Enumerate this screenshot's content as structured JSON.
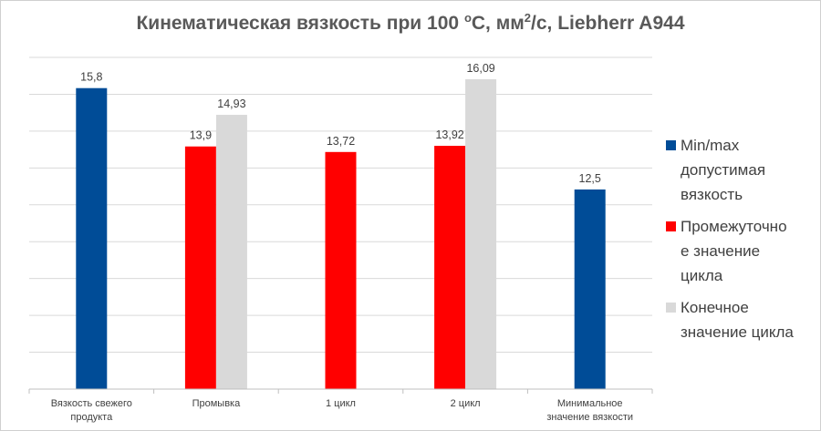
{
  "chart_data": {
    "type": "bar",
    "title": "Кинематическая вязкость при 100 °C, мм²/с, Liebherr A944",
    "title_parts": {
      "main": "Кинематическая вязкость при 100 ",
      "degree": "o",
      "unit_pre": "С, мм",
      "sq": "2",
      "tail": "/с, Liebherr A944"
    },
    "categories": [
      "Вязкость свежего продукта",
      "Промывка",
      "1 цикл",
      "2 цикл",
      "Минимальное значение вязкости"
    ],
    "category_lines": [
      [
        "Вязкость свежего",
        "продукта"
      ],
      [
        "Промывка"
      ],
      [
        "1 цикл"
      ],
      [
        "2 цикл"
      ],
      [
        "Минимальное",
        "значение вязкости"
      ]
    ],
    "series": [
      {
        "name": "Min/max допустимая вязкость",
        "color": "#004C97",
        "values": [
          15.8,
          null,
          null,
          null,
          12.5
        ]
      },
      {
        "name": "Промежуточное значение цикла",
        "color": "#FF0000",
        "values": [
          null,
          13.9,
          13.72,
          13.92,
          null
        ]
      },
      {
        "name": "Конечное значение цикла",
        "color": "#D9D9D9",
        "values": [
          null,
          14.93,
          null,
          16.09,
          null
        ]
      }
    ],
    "value_labels": {
      "0": {
        "0": "15,8",
        "4": "12,5"
      },
      "1": {
        "1": "13,9",
        "2": "13,72",
        "3": "13,92"
      },
      "2": {
        "1": "14,93",
        "3": "16,09"
      }
    },
    "legend_lines": [
      [
        "Min/max",
        "допустимая",
        "вязкость"
      ],
      [
        "Промежуточно",
        "е значение",
        "цикла"
      ],
      [
        "Конечное",
        "значение цикла"
      ]
    ],
    "ylim": [
      6,
      16.8
    ],
    "grid": true,
    "legend_position": "right"
  }
}
